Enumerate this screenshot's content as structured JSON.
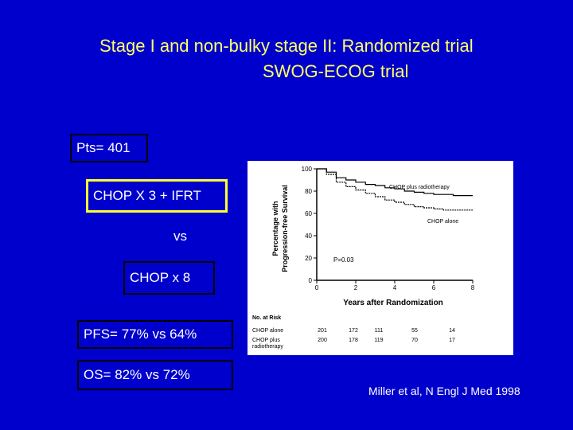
{
  "slide": {
    "title_line1": "Stage I  and non-bulky stage II:  Randomized trial",
    "title_line2": "SWOG-ECOG trial",
    "patients": "Pts= 401",
    "arm1": "CHOP X 3 + IFRT",
    "vs": "vs",
    "arm2": "CHOP x 8",
    "pfs": "PFS= 77% vs  64%",
    "os": "OS=  82% vs  72%",
    "citation": "Miller et al, N Engl J Med 1998"
  },
  "colors": {
    "background": "#0000cc",
    "title": "#ffff66",
    "text": "#ffffff",
    "highlight_border": "#ffff33"
  },
  "chart_data": {
    "type": "line",
    "xlabel": "Years after Randomization",
    "ylabel_line1": "Percentage with",
    "ylabel_line2": "Progression-free Survival",
    "xlim": [
      0,
      8
    ],
    "ylim": [
      0,
      100
    ],
    "x_ticks": [
      0,
      2,
      4,
      6,
      8
    ],
    "y_ticks": [
      0,
      20,
      40,
      60,
      80,
      100
    ],
    "p_value": "P=0.03",
    "series": [
      {
        "name": "CHOP plus radiotherapy",
        "points": [
          [
            0,
            100
          ],
          [
            0.5,
            97
          ],
          [
            1,
            92
          ],
          [
            1.5,
            90
          ],
          [
            2,
            88
          ],
          [
            2.5,
            86
          ],
          [
            3,
            85
          ],
          [
            3.5,
            83
          ],
          [
            4,
            82
          ],
          [
            4.5,
            80
          ],
          [
            5,
            79
          ],
          [
            5.5,
            78
          ],
          [
            6,
            77
          ],
          [
            6.5,
            77
          ],
          [
            7,
            76
          ],
          [
            8,
            76
          ]
        ]
      },
      {
        "name": "CHOP alone",
        "points": [
          [
            0,
            100
          ],
          [
            0.5,
            95
          ],
          [
            1,
            88
          ],
          [
            1.5,
            84
          ],
          [
            2,
            81
          ],
          [
            2.5,
            78
          ],
          [
            3,
            75
          ],
          [
            3.5,
            72
          ],
          [
            4,
            70
          ],
          [
            4.5,
            68
          ],
          [
            5,
            66
          ],
          [
            5.5,
            65
          ],
          [
            6,
            64
          ],
          [
            6.5,
            63
          ],
          [
            7,
            63
          ],
          [
            8,
            63
          ]
        ]
      }
    ],
    "at_risk": {
      "header": "No. at Risk",
      "rows": [
        {
          "label": "CHOP alone",
          "values": [
            "201",
            "172",
            "111",
            "55",
            "14"
          ]
        },
        {
          "label": "CHOP plus radiotherapy",
          "values": [
            "200",
            "178",
            "119",
            "70",
            "17"
          ]
        }
      ]
    }
  }
}
